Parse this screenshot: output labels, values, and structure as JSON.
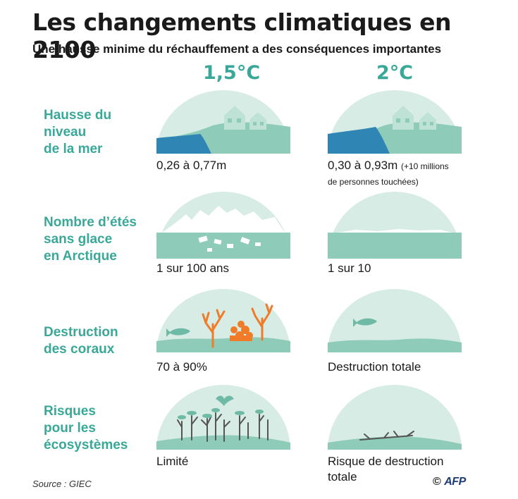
{
  "title": "Les changements climatiques en 2100",
  "subtitle": "Une hausse minime du réchauffement a des conséquences importantes",
  "columns": [
    "1,5°C",
    "2°C"
  ],
  "rows": [
    {
      "label_lines": [
        "Hausse du",
        "niveau",
        "de la mer"
      ],
      "values": [
        {
          "line1": "0,26 à 0,77m",
          "extra": "",
          "line2": ""
        },
        {
          "line1": "0,30 à 0,93m",
          "extra": "(+10 millions",
          "line2": "de personnes touchées)"
        }
      ]
    },
    {
      "label_lines": [
        "Nombre d’étés",
        "sans glace",
        "en Arctique"
      ],
      "values": [
        {
          "line1": "1 sur 100 ans",
          "extra": "",
          "line2": ""
        },
        {
          "line1": "1 sur 10",
          "extra": "",
          "line2": ""
        }
      ]
    },
    {
      "label_lines": [
        "Destruction",
        "des coraux"
      ],
      "values": [
        {
          "line1": "70 à 90%",
          "extra": "",
          "line2": ""
        },
        {
          "line1": "Destruction totale",
          "extra": "",
          "line2": ""
        }
      ]
    },
    {
      "label_lines": [
        "Risques",
        "pour les",
        "écosystèmes"
      ],
      "values": [
        {
          "line1": "Limité",
          "extra": "",
          "line2": ""
        },
        {
          "line1": "Risque de destruction",
          "extra": "",
          "line2": "totale"
        }
      ]
    }
  ],
  "source": "Source : GIEC",
  "credit_symbol": "©",
  "credit_brand": "AFP",
  "colors": {
    "accent": "#3aa898",
    "dome_bg": "#d7ece5",
    "ground": "#8ecbb8",
    "ground_dark": "#6fbaa6",
    "water": "#2f86b4",
    "coral": "#f07c2a",
    "ice": "#ffffff"
  }
}
